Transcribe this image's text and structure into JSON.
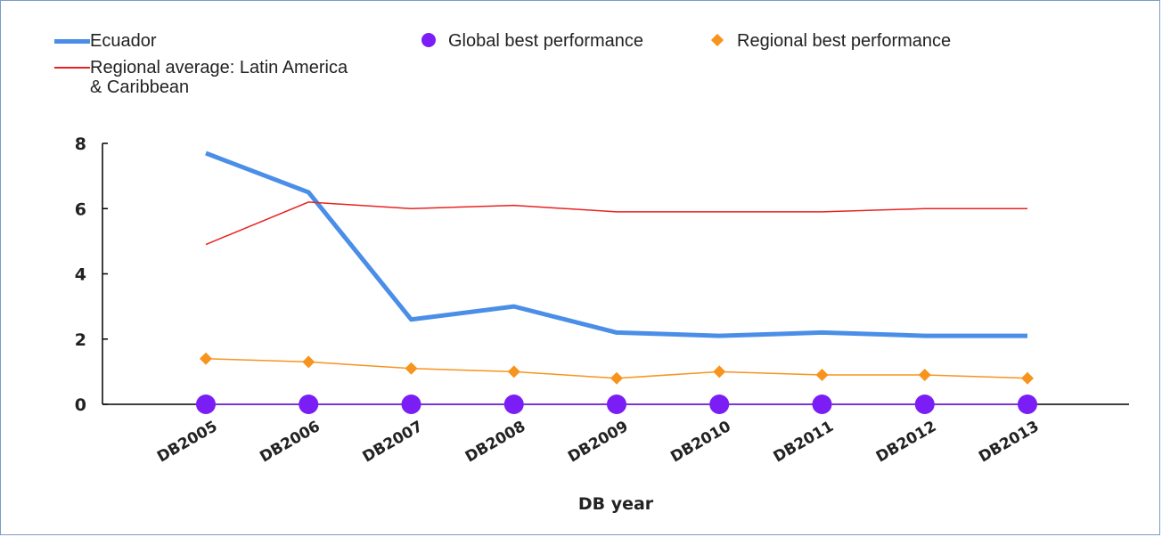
{
  "legend": {
    "ecuador": "Ecuador",
    "regional_average_line1": "Regional average: Latin America",
    "regional_average_line2": "& Caribbean",
    "global_best": "Global best performance",
    "regional_best": "Regional best performance"
  },
  "chart_data": {
    "type": "line",
    "title": "",
    "xlabel": "DB year",
    "ylabel": "",
    "ylim": [
      0,
      8
    ],
    "yticks": [
      0,
      2,
      4,
      6,
      8
    ],
    "grid": false,
    "legend_position": "top",
    "categories": [
      "DB2005",
      "DB2006",
      "DB2007",
      "DB2008",
      "DB2009",
      "DB2010",
      "DB2011",
      "DB2012",
      "DB2013"
    ],
    "series": [
      {
        "name": "Ecuador",
        "color": "#4a8ee8",
        "style": "thick-line",
        "values": [
          7.7,
          6.5,
          2.6,
          3.0,
          2.2,
          2.1,
          2.2,
          2.1,
          2.1
        ]
      },
      {
        "name": "Regional average: Latin America & Caribbean",
        "color": "#e8231f",
        "style": "thin-line",
        "values": [
          4.9,
          6.2,
          6.0,
          6.1,
          5.9,
          5.9,
          5.9,
          6.0,
          6.0
        ]
      },
      {
        "name": "Global best performance",
        "color": "#7a1ef5",
        "style": "circle-markers",
        "values": [
          0,
          0,
          0,
          0,
          0,
          0,
          0,
          0,
          0
        ]
      },
      {
        "name": "Regional best performance",
        "color": "#f7941d",
        "style": "diamond-line",
        "values": [
          1.4,
          1.3,
          1.1,
          1.0,
          0.8,
          1.0,
          0.9,
          0.9,
          0.8
        ]
      }
    ]
  }
}
